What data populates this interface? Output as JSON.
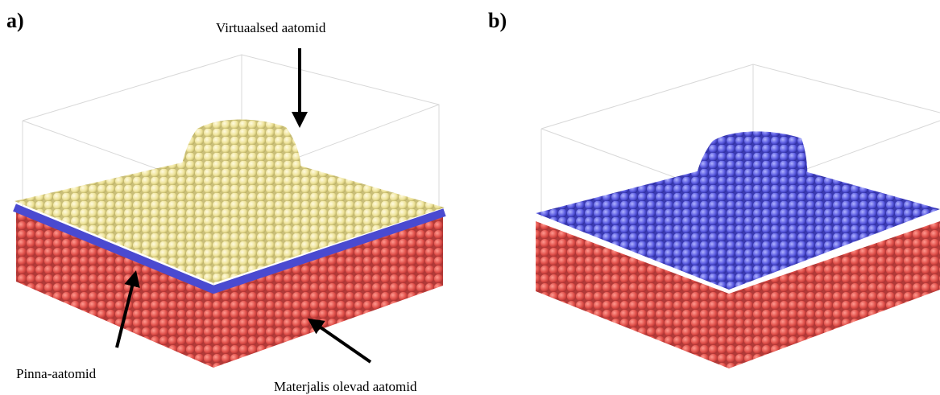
{
  "panel_a": {
    "label": "a)",
    "annotations": {
      "virtual": "Virtuaalsed aatomid",
      "surface": "Pinna-aatomid",
      "material": "Materjalis olevad aatomid"
    }
  },
  "panel_b": {
    "label": "b)"
  }
}
